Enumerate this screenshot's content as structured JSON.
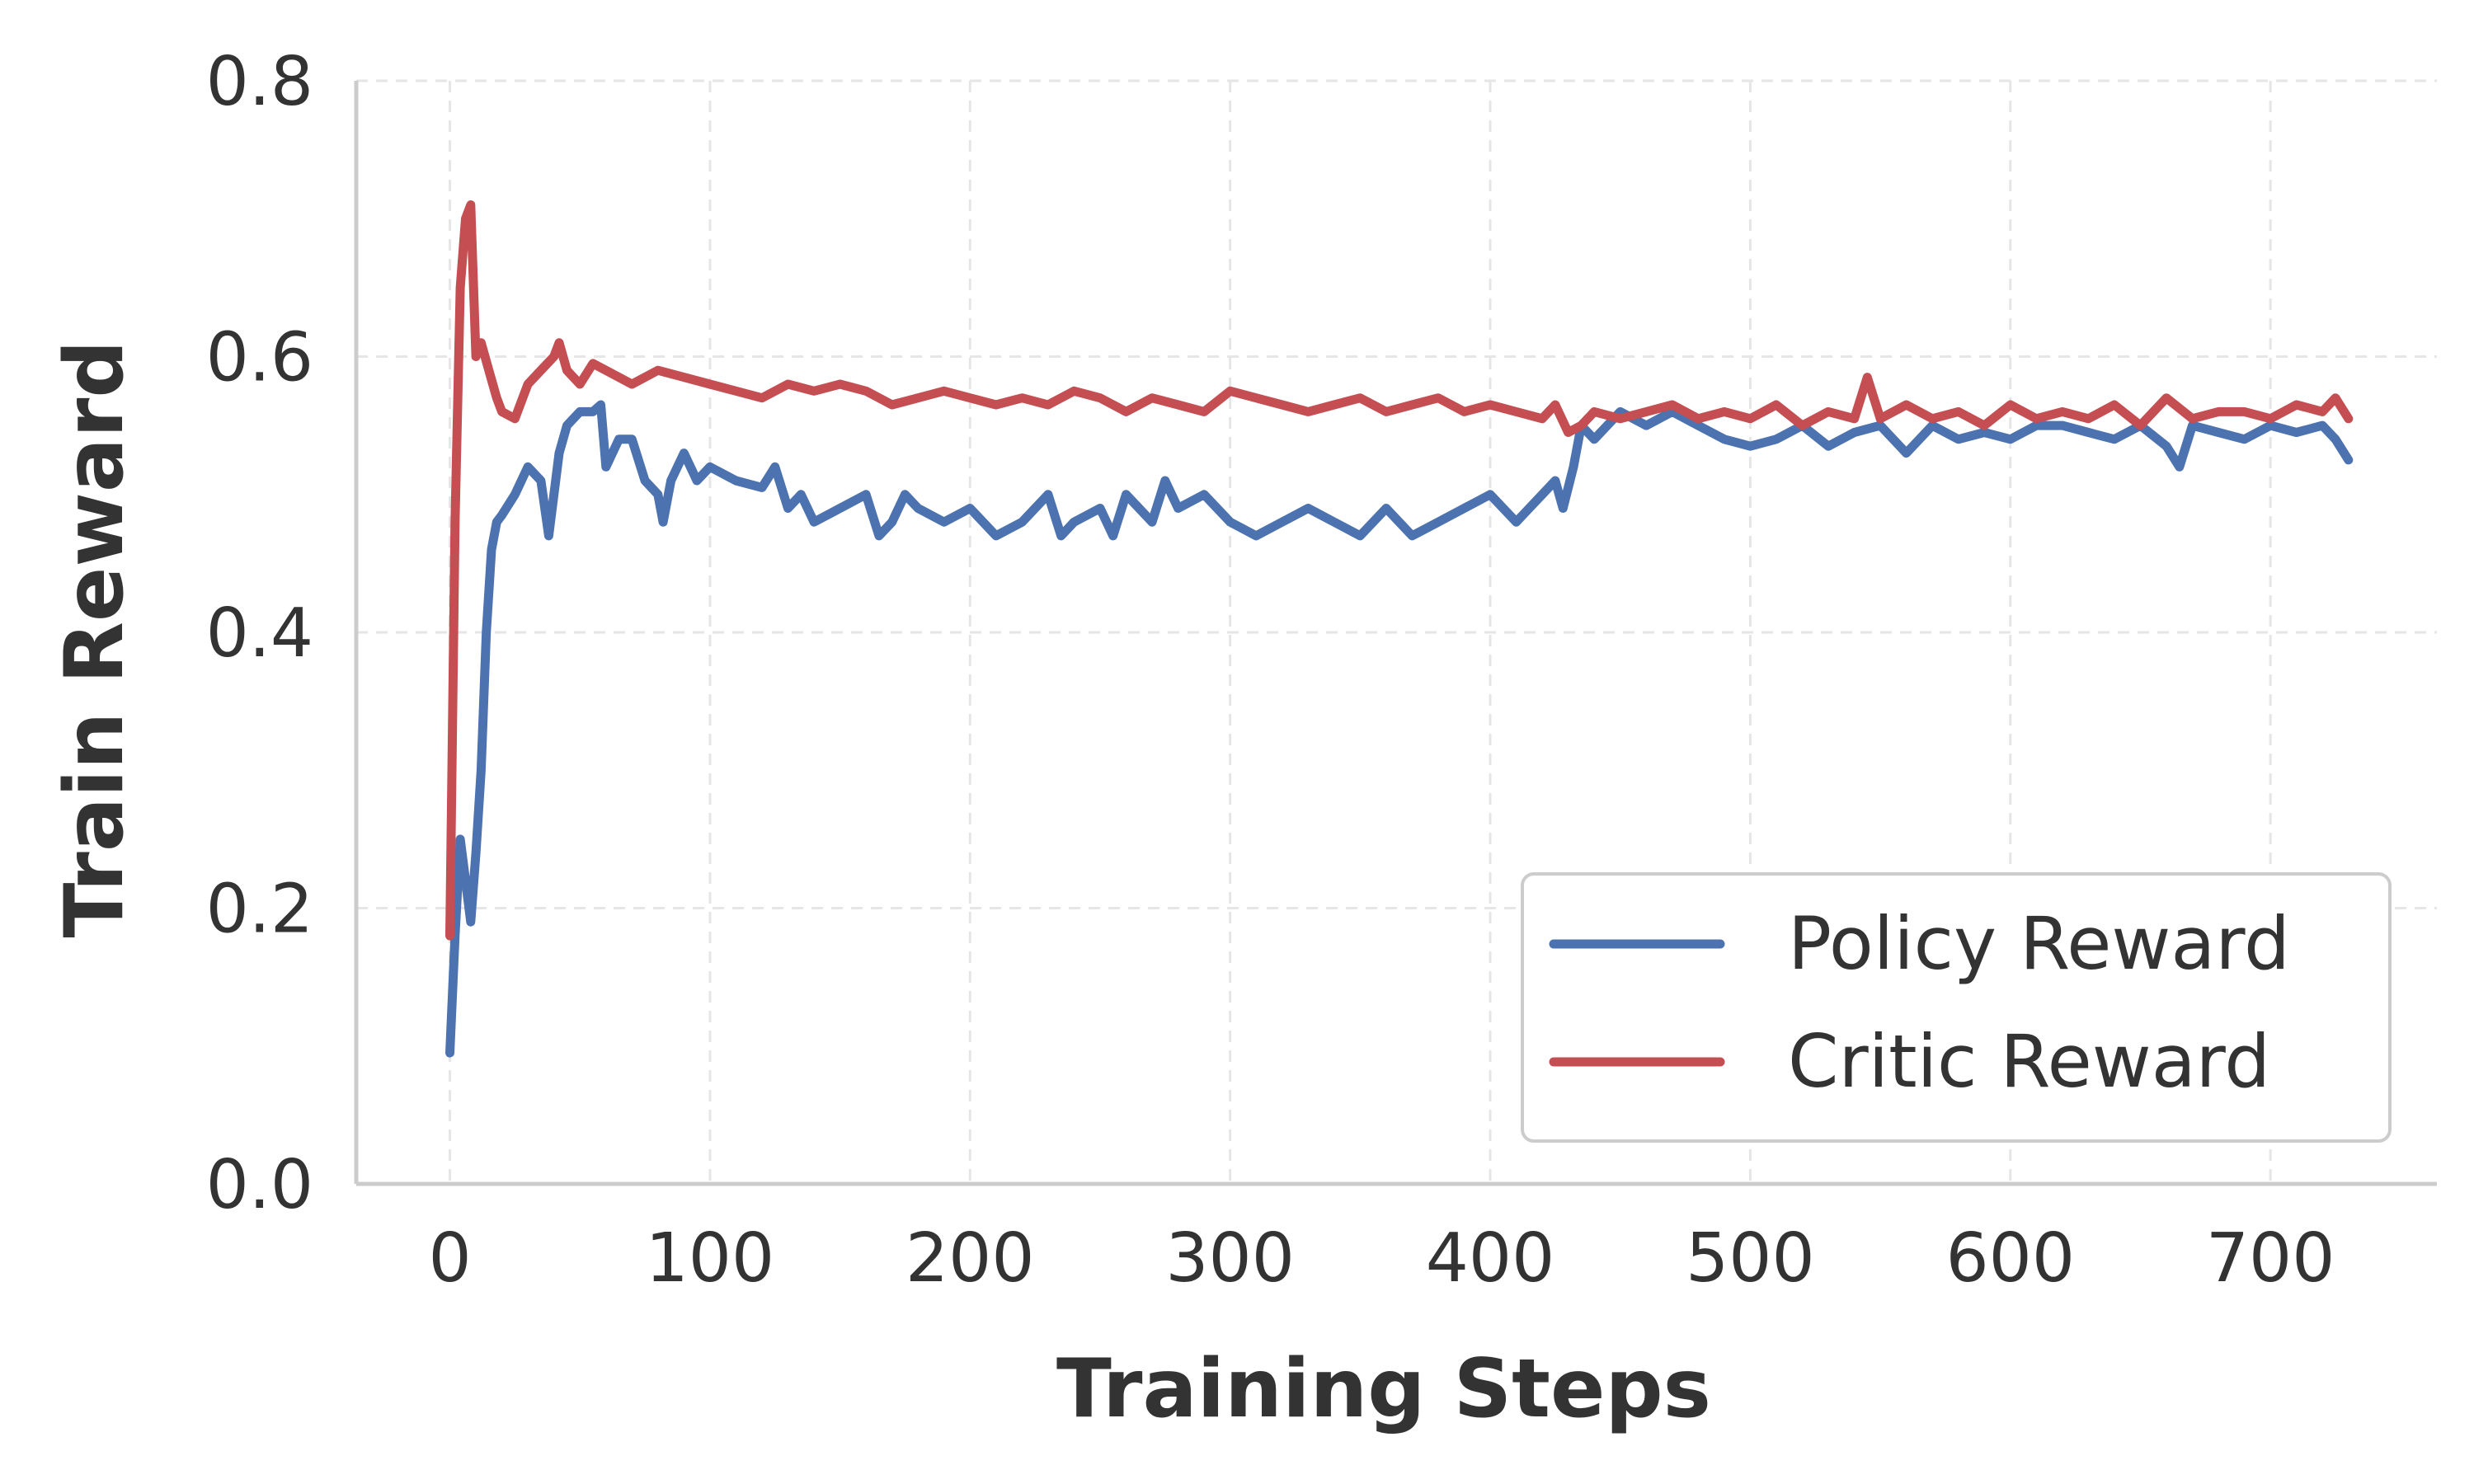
{
  "chart_data": {
    "type": "line",
    "title": "",
    "xlabel": "Training Steps",
    "ylabel": "Train Reward",
    "xlim": [
      -36,
      764
    ],
    "ylim": [
      0.0,
      0.8
    ],
    "xticks": [
      0,
      100,
      200,
      300,
      400,
      500,
      600,
      700
    ],
    "xtick_labels": [
      "0",
      "100",
      "200",
      "300",
      "400",
      "500",
      "600",
      "700"
    ],
    "yticks": [
      0.0,
      0.2,
      0.4,
      0.6,
      0.8
    ],
    "ytick_labels": [
      "0.0",
      "0.2",
      "0.4",
      "0.6",
      "0.8"
    ],
    "grid": true,
    "legend_position": "lower-right",
    "series": [
      {
        "name": "Policy Reward",
        "color": "#4c72b0",
        "x": [
          0,
          2,
          4,
          6,
          8,
          10,
          12,
          14,
          16,
          18,
          20,
          25,
          30,
          35,
          38,
          40,
          42,
          45,
          50,
          55,
          58,
          60,
          65,
          70,
          75,
          80,
          82,
          85,
          90,
          95,
          100,
          110,
          120,
          125,
          130,
          135,
          140,
          150,
          160,
          165,
          170,
          175,
          180,
          190,
          200,
          210,
          220,
          230,
          235,
          240,
          250,
          255,
          260,
          270,
          275,
          280,
          290,
          300,
          310,
          320,
          330,
          340,
          350,
          360,
          370,
          380,
          390,
          400,
          410,
          415,
          420,
          425,
          428,
          432,
          435,
          440,
          450,
          460,
          470,
          480,
          490,
          500,
          510,
          520,
          530,
          540,
          550,
          560,
          570,
          580,
          590,
          600,
          610,
          620,
          630,
          640,
          650,
          660,
          665,
          670,
          680,
          690,
          700,
          710,
          720,
          725,
          730
        ],
        "values": [
          0.095,
          0.18,
          0.25,
          0.22,
          0.19,
          0.24,
          0.3,
          0.4,
          0.46,
          0.48,
          0.485,
          0.5,
          0.52,
          0.51,
          0.47,
          0.5,
          0.53,
          0.55,
          0.56,
          0.56,
          0.565,
          0.52,
          0.54,
          0.54,
          0.51,
          0.5,
          0.48,
          0.51,
          0.53,
          0.51,
          0.52,
          0.51,
          0.505,
          0.52,
          0.49,
          0.5,
          0.48,
          0.49,
          0.5,
          0.47,
          0.48,
          0.5,
          0.49,
          0.48,
          0.49,
          0.47,
          0.48,
          0.5,
          0.47,
          0.48,
          0.49,
          0.47,
          0.5,
          0.48,
          0.51,
          0.49,
          0.5,
          0.48,
          0.47,
          0.48,
          0.49,
          0.48,
          0.47,
          0.49,
          0.47,
          0.48,
          0.49,
          0.5,
          0.48,
          0.49,
          0.5,
          0.51,
          0.49,
          0.52,
          0.55,
          0.54,
          0.56,
          0.55,
          0.56,
          0.55,
          0.54,
          0.535,
          0.54,
          0.55,
          0.535,
          0.545,
          0.55,
          0.53,
          0.55,
          0.54,
          0.545,
          0.54,
          0.55,
          0.55,
          0.545,
          0.54,
          0.55,
          0.535,
          0.52,
          0.55,
          0.545,
          0.54,
          0.55,
          0.545,
          0.55,
          0.54,
          0.525
        ]
      },
      {
        "name": "Critic Reward",
        "color": "#c44e52",
        "x": [
          0,
          2,
          4,
          6,
          8,
          10,
          12,
          15,
          18,
          20,
          25,
          30,
          35,
          40,
          42,
          45,
          50,
          55,
          60,
          70,
          80,
          90,
          100,
          110,
          120,
          130,
          140,
          150,
          160,
          170,
          180,
          190,
          200,
          210,
          220,
          230,
          240,
          250,
          260,
          270,
          280,
          290,
          300,
          310,
          320,
          330,
          340,
          350,
          360,
          370,
          380,
          390,
          400,
          410,
          420,
          425,
          430,
          435,
          440,
          450,
          460,
          470,
          480,
          490,
          500,
          510,
          520,
          530,
          540,
          545,
          550,
          555,
          560,
          570,
          580,
          590,
          600,
          610,
          620,
          630,
          640,
          650,
          660,
          670,
          680,
          690,
          700,
          710,
          720,
          725,
          730
        ],
        "values": [
          0.18,
          0.48,
          0.65,
          0.7,
          0.71,
          0.6,
          0.61,
          0.59,
          0.57,
          0.56,
          0.555,
          0.58,
          0.59,
          0.6,
          0.61,
          0.59,
          0.58,
          0.595,
          0.59,
          0.58,
          0.59,
          0.585,
          0.58,
          0.575,
          0.57,
          0.58,
          0.575,
          0.58,
          0.575,
          0.565,
          0.57,
          0.575,
          0.57,
          0.565,
          0.57,
          0.565,
          0.575,
          0.57,
          0.56,
          0.57,
          0.565,
          0.56,
          0.575,
          0.57,
          0.565,
          0.56,
          0.565,
          0.57,
          0.56,
          0.565,
          0.57,
          0.56,
          0.565,
          0.56,
          0.555,
          0.565,
          0.545,
          0.55,
          0.56,
          0.555,
          0.56,
          0.565,
          0.555,
          0.56,
          0.555,
          0.565,
          0.55,
          0.56,
          0.555,
          0.585,
          0.555,
          0.56,
          0.565,
          0.555,
          0.56,
          0.55,
          0.565,
          0.555,
          0.56,
          0.555,
          0.565,
          0.55,
          0.57,
          0.555,
          0.56,
          0.56,
          0.555,
          0.565,
          0.56,
          0.57,
          0.555
        ]
      }
    ]
  }
}
